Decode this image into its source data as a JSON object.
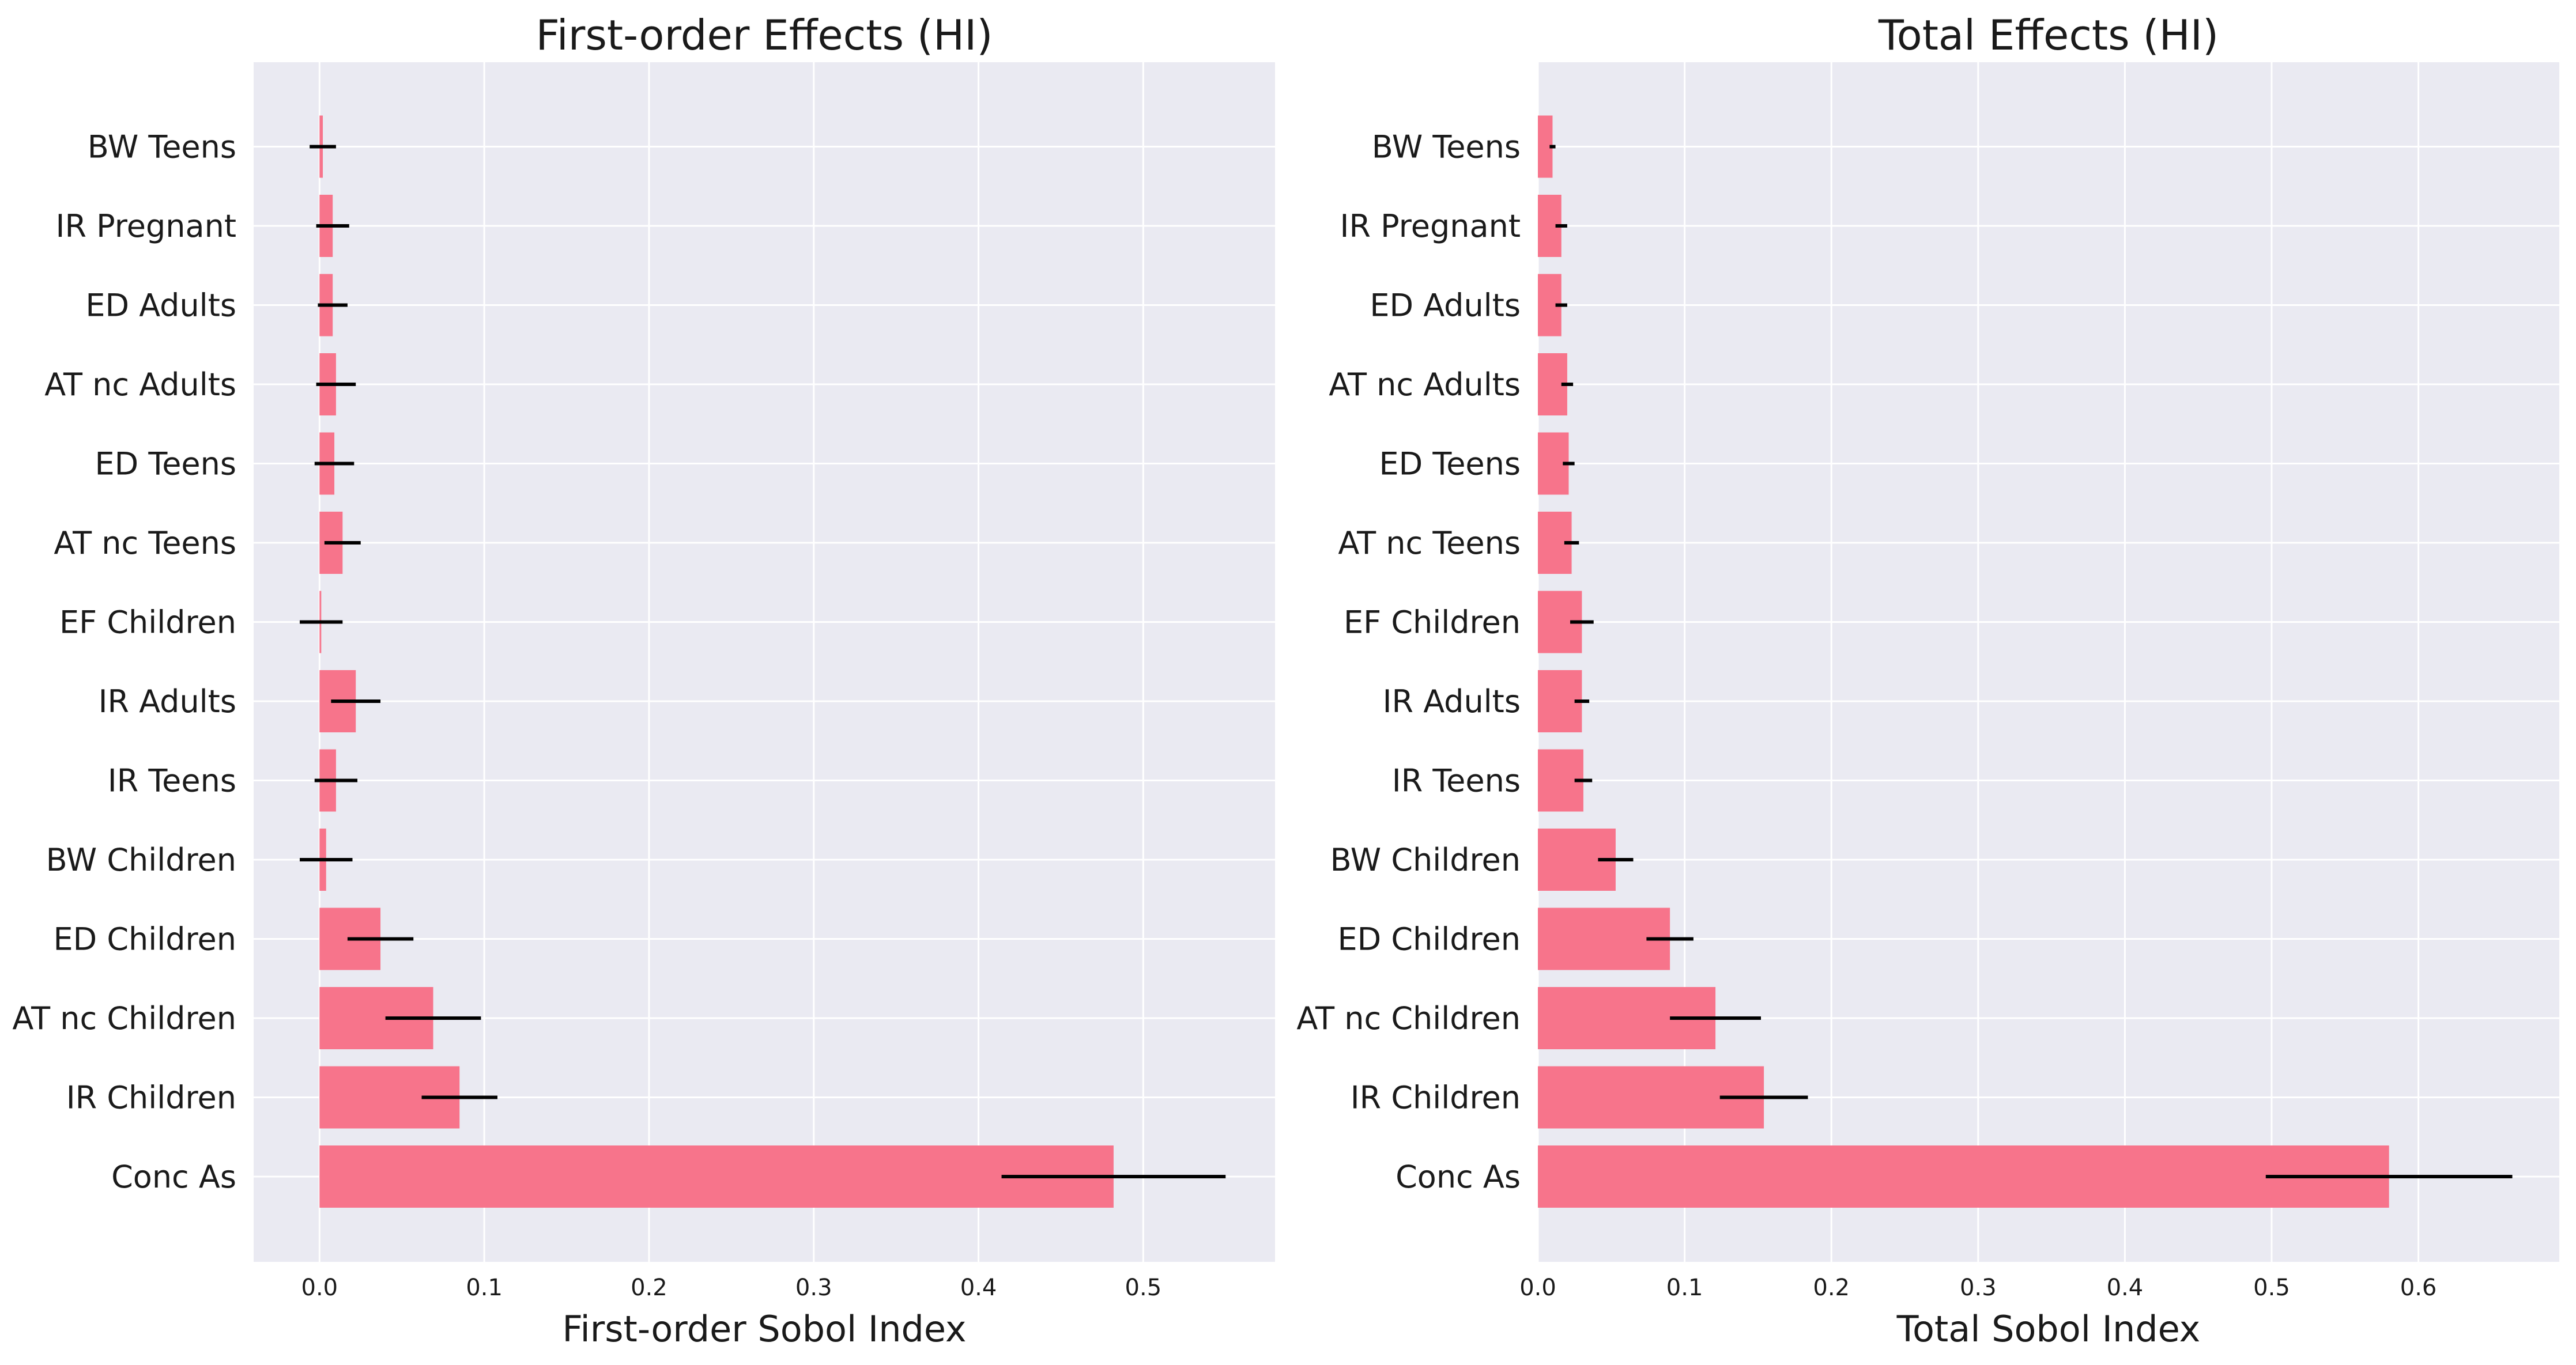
{
  "colors": {
    "bar": "#f7748b",
    "panel_bg": "#eaeaf2",
    "grid": "#ffffff",
    "error_bar": "#000000"
  },
  "chart_data": [
    {
      "type": "bar",
      "orientation": "horizontal",
      "title": "First-order Effects (HI)",
      "xlabel": "First-order Sobol Index",
      "ylabel": "",
      "categories": [
        "Conc As",
        "IR Children",
        "AT nc Children",
        "ED Children",
        "BW Children",
        "IR Teens",
        "IR Adults",
        "EF Children",
        "AT nc Teens",
        "ED Teens",
        "AT nc Adults",
        "ED Adults",
        "IR Pregnant",
        "BW Teens"
      ],
      "values": [
        0.482,
        0.085,
        0.069,
        0.037,
        0.004,
        0.01,
        0.022,
        0.001,
        0.014,
        0.009,
        0.01,
        0.008,
        0.008,
        0.002
      ],
      "errors": [
        0.068,
        0.023,
        0.029,
        0.02,
        0.016,
        0.013,
        0.015,
        0.013,
        0.011,
        0.012,
        0.012,
        0.009,
        0.01,
        0.008
      ],
      "xlim": [
        -0.04,
        0.58
      ],
      "xticks": [
        0.0,
        0.1,
        0.2,
        0.3,
        0.4,
        0.5
      ],
      "xtick_labels": [
        "0.0",
        "0.1",
        "0.2",
        "0.3",
        "0.4",
        "0.5"
      ],
      "grid": true
    },
    {
      "type": "bar",
      "orientation": "horizontal",
      "title": "Total Effects (HI)",
      "xlabel": "Total Sobol Index",
      "ylabel": "",
      "categories": [
        "Conc As",
        "IR Children",
        "AT nc Children",
        "ED Children",
        "BW Children",
        "IR Teens",
        "IR Adults",
        "EF Children",
        "AT nc Teens",
        "ED Teens",
        "AT nc Adults",
        "ED Adults",
        "IR Pregnant",
        "BW Teens"
      ],
      "values": [
        0.58,
        0.154,
        0.121,
        0.09,
        0.053,
        0.031,
        0.03,
        0.03,
        0.023,
        0.021,
        0.02,
        0.016,
        0.016,
        0.01
      ],
      "errors": [
        0.084,
        0.03,
        0.031,
        0.016,
        0.012,
        0.006,
        0.005,
        0.008,
        0.005,
        0.004,
        0.004,
        0.004,
        0.004,
        0.002
      ],
      "xlim": [
        0.0,
        0.696
      ],
      "xticks": [
        0.0,
        0.1,
        0.2,
        0.3,
        0.4,
        0.5,
        0.6
      ],
      "xtick_labels": [
        "0.0",
        "0.1",
        "0.2",
        "0.3",
        "0.4",
        "0.5",
        "0.6"
      ],
      "grid": true
    }
  ]
}
